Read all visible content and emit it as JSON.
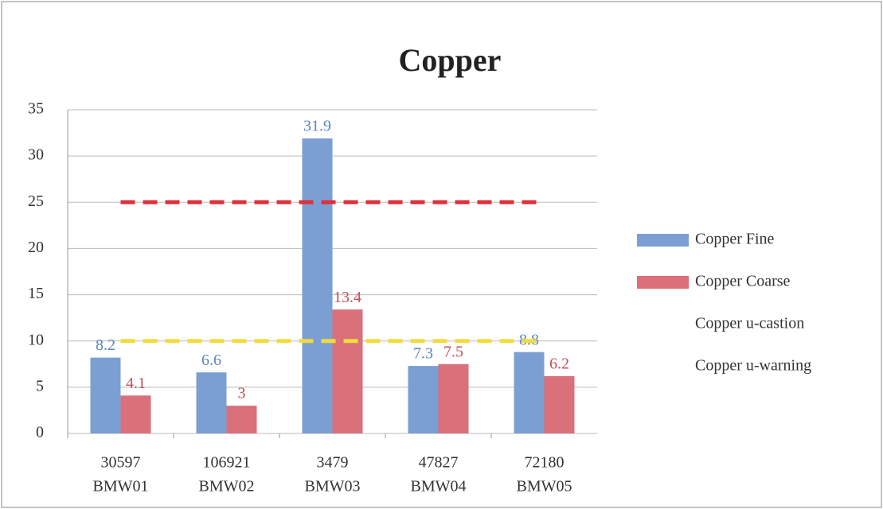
{
  "chart_data": {
    "type": "bar",
    "title": "Copper",
    "categories": [
      [
        "30597",
        "BMW01"
      ],
      [
        "106921",
        "BMW02"
      ],
      [
        "3479",
        "BMW03"
      ],
      [
        "47827",
        "BMW04"
      ],
      [
        "72180",
        "BMW05"
      ]
    ],
    "series": [
      {
        "name": "Copper Fine",
        "type": "bar",
        "color": "#7b9fd3",
        "label_color": "#5a86c4",
        "values": [
          8.2,
          6.6,
          31.9,
          7.3,
          8.8
        ]
      },
      {
        "name": "Copper Coarse",
        "type": "bar",
        "color": "#d9707a",
        "label_color": "#c0505a",
        "values": [
          4.1,
          3,
          13.4,
          7.5,
          6.2
        ]
      },
      {
        "name": "Copper u-castion",
        "type": "line",
        "dashed": true,
        "color": "#f0dc3c",
        "values": [
          10,
          10,
          10,
          10,
          10
        ]
      },
      {
        "name": "Copper u-warning",
        "type": "line",
        "dashed": true,
        "color": "#e0303a",
        "values": [
          25,
          25,
          25,
          25,
          25
        ]
      }
    ],
    "ylim": [
      0,
      35
    ],
    "yticks": [
      0,
      5,
      10,
      15,
      20,
      25,
      30,
      35
    ],
    "grid": true,
    "legend": "right"
  }
}
